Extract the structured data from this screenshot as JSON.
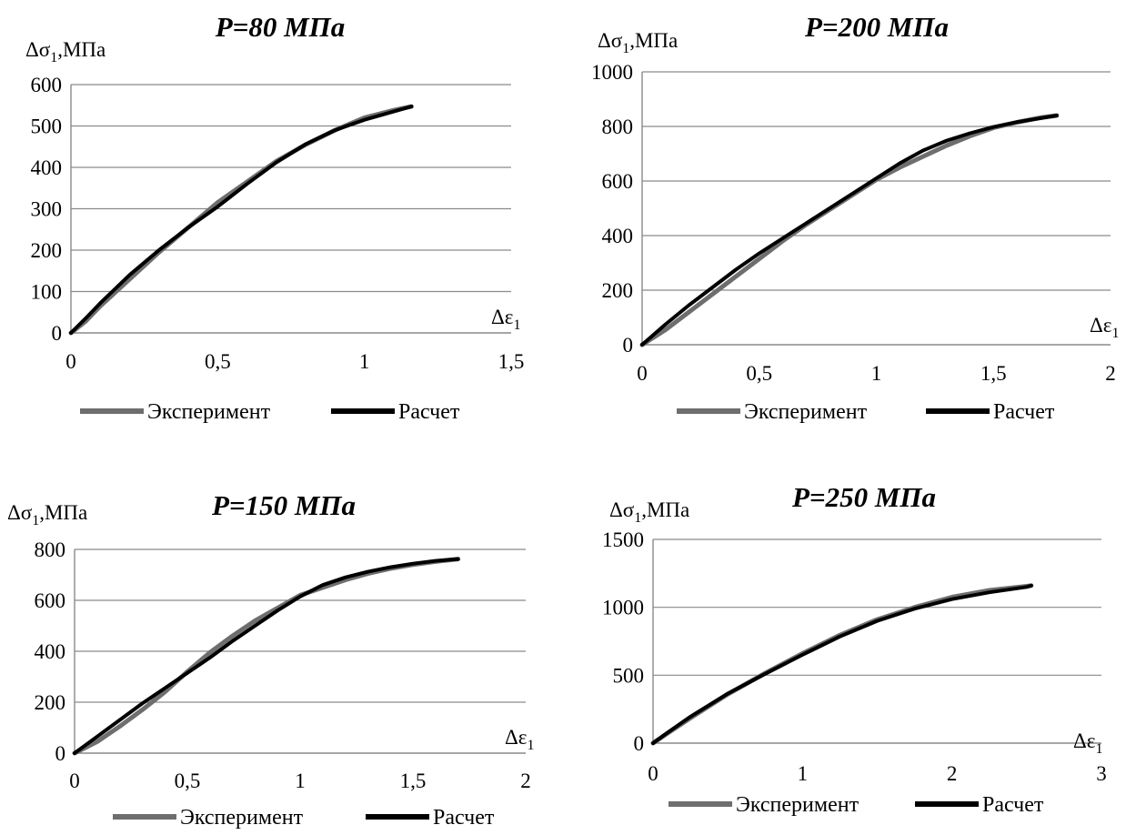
{
  "colors": {
    "experiment": "#6e6e6e",
    "calculation": "#000000",
    "grid": "#8a8a8a"
  },
  "chart_data": [
    {
      "type": "line",
      "title": "P=80 МПа",
      "xlabel": "Δε1",
      "ylabel": "Δσ1,МПа",
      "xlim": [
        0,
        1.5
      ],
      "ylim": [
        0,
        600
      ],
      "xticks": [
        "0",
        "0,5",
        "1",
        "1,5"
      ],
      "yticks": [
        "0",
        "100",
        "200",
        "300",
        "400",
        "500",
        "600"
      ],
      "grid": true,
      "legend_position": "bottom",
      "series": [
        {
          "name": "Эксперимент",
          "x": [
            0,
            0.05,
            0.1,
            0.2,
            0.3,
            0.4,
            0.5,
            0.6,
            0.7,
            0.8,
            0.9,
            1.0,
            1.1,
            1.16
          ],
          "y": [
            0,
            28,
            65,
            130,
            195,
            255,
            315,
            365,
            415,
            455,
            490,
            520,
            538,
            547
          ]
        },
        {
          "name": "Расчет",
          "x": [
            0,
            0.05,
            0.1,
            0.2,
            0.3,
            0.4,
            0.5,
            0.6,
            0.7,
            0.8,
            0.9,
            1.0,
            1.1,
            1.16
          ],
          "y": [
            0,
            35,
            72,
            140,
            200,
            255,
            305,
            360,
            412,
            456,
            490,
            515,
            535,
            547
          ]
        }
      ]
    },
    {
      "type": "line",
      "title": "P=200 МПа",
      "xlabel": "Δε1",
      "ylabel": "Δσ1,МПа",
      "xlim": [
        0,
        2
      ],
      "ylim": [
        0,
        1000
      ],
      "xticks": [
        "0",
        "0,5",
        "1",
        "1,5",
        "2"
      ],
      "yticks": [
        "0",
        "200",
        "400",
        "600",
        "800",
        "1000"
      ],
      "grid": true,
      "legend_position": "bottom",
      "series": [
        {
          "name": "Эксперимент",
          "x": [
            0,
            0.1,
            0.2,
            0.3,
            0.4,
            0.5,
            0.6,
            0.7,
            0.8,
            0.9,
            1.0,
            1.1,
            1.2,
            1.3,
            1.4,
            1.5,
            1.6,
            1.7,
            1.77
          ],
          "y": [
            0,
            55,
            120,
            185,
            250,
            315,
            380,
            440,
            495,
            550,
            605,
            650,
            690,
            730,
            765,
            795,
            815,
            832,
            840
          ]
        },
        {
          "name": "Расчет",
          "x": [
            0,
            0.1,
            0.2,
            0.3,
            0.4,
            0.5,
            0.6,
            0.7,
            0.8,
            0.9,
            1.0,
            1.1,
            1.2,
            1.3,
            1.4,
            1.5,
            1.6,
            1.7,
            1.77
          ],
          "y": [
            0,
            75,
            145,
            210,
            275,
            335,
            390,
            445,
            500,
            555,
            610,
            665,
            712,
            748,
            775,
            798,
            816,
            830,
            840
          ]
        }
      ]
    },
    {
      "type": "line",
      "title": "P=150 МПа",
      "xlabel": "Δε1",
      "ylabel": "Δσ1,МПа",
      "xlim": [
        0,
        2
      ],
      "ylim": [
        0,
        800
      ],
      "xticks": [
        "0",
        "0,5",
        "1",
        "1,5",
        "2"
      ],
      "yticks": [
        "0",
        "200",
        "400",
        "600",
        "800"
      ],
      "grid": true,
      "legend_position": "bottom",
      "series": [
        {
          "name": "Эксперимент",
          "x": [
            0,
            0.1,
            0.2,
            0.3,
            0.4,
            0.5,
            0.6,
            0.7,
            0.8,
            0.9,
            1.0,
            1.1,
            1.2,
            1.3,
            1.4,
            1.5,
            1.6,
            1.7
          ],
          "y": [
            0,
            45,
            105,
            170,
            240,
            320,
            395,
            460,
            520,
            570,
            620,
            650,
            680,
            705,
            725,
            740,
            752,
            762
          ]
        },
        {
          "name": "Расчет",
          "x": [
            0,
            0.1,
            0.2,
            0.3,
            0.4,
            0.5,
            0.6,
            0.7,
            0.8,
            0.9,
            1.0,
            1.1,
            1.2,
            1.3,
            1.4,
            1.5,
            1.6,
            1.7
          ],
          "y": [
            0,
            65,
            130,
            195,
            255,
            315,
            375,
            440,
            500,
            560,
            615,
            660,
            690,
            712,
            730,
            744,
            755,
            762
          ]
        }
      ]
    },
    {
      "type": "line",
      "title": "P=250 МПа",
      "xlabel": "Δε1",
      "ylabel": "Δσ1,МПа",
      "xlim": [
        0,
        3
      ],
      "ylim": [
        0,
        1500
      ],
      "xticks": [
        "0",
        "1",
        "2",
        "3"
      ],
      "yticks": [
        "0",
        "500",
        "1000",
        "1500"
      ],
      "grid": true,
      "legend_position": "bottom",
      "series": [
        {
          "name": "Эксперимент",
          "x": [
            0,
            0.1,
            0.25,
            0.5,
            0.75,
            1.0,
            1.25,
            1.5,
            1.75,
            2.0,
            2.25,
            2.5,
            2.53
          ],
          "y": [
            0,
            75,
            185,
            360,
            515,
            660,
            795,
            910,
            1000,
            1075,
            1125,
            1155,
            1160
          ]
        },
        {
          "name": "Расчет",
          "x": [
            0,
            0.1,
            0.25,
            0.5,
            0.75,
            1.0,
            1.25,
            1.5,
            1.75,
            2.0,
            2.25,
            2.5,
            2.53
          ],
          "y": [
            0,
            80,
            195,
            365,
            510,
            650,
            785,
            900,
            990,
            1060,
            1110,
            1150,
            1160
          ]
        }
      ]
    }
  ]
}
